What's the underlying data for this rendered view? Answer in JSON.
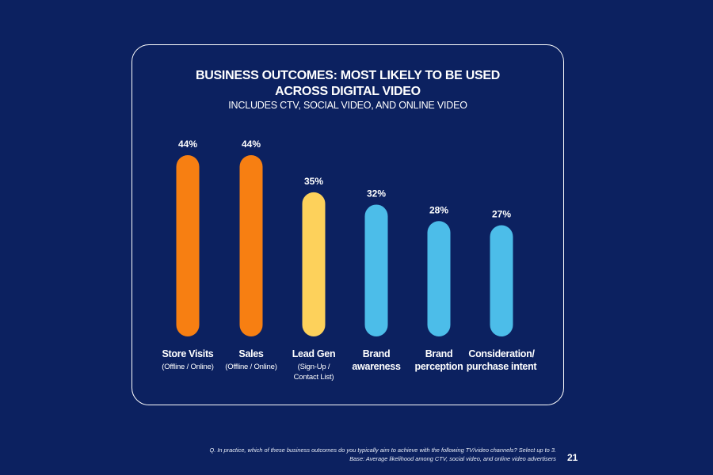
{
  "chart_data": {
    "type": "bar",
    "title": "BUSINESS OUTCOMES: MOST LIKELY TO BE USED ACROSS DIGITAL VIDEO",
    "title_lines": [
      "BUSINESS OUTCOMES: MOST LIKELY TO BE USED",
      "ACROSS DIGITAL VIDEO"
    ],
    "subtitle": "INCLUDES CTV, SOCIAL VIDEO, AND ONLINE VIDEO",
    "categories": [
      {
        "label": [
          "Store Visits"
        ],
        "sublabel": [
          "(Offline / Online)"
        ]
      },
      {
        "label": [
          "Sales"
        ],
        "sublabel": [
          "(Offline / Online)"
        ]
      },
      {
        "label": [
          "Lead Gen"
        ],
        "sublabel": [
          "(Sign-Up /",
          "Contact List)"
        ]
      },
      {
        "label": [
          "Brand",
          "awareness"
        ],
        "sublabel": []
      },
      {
        "label": [
          "Brand",
          "perception"
        ],
        "sublabel": []
      },
      {
        "label": [
          "Consideration/",
          "purchase intent"
        ],
        "sublabel": []
      }
    ],
    "values": [
      44,
      44,
      35,
      32,
      28,
      27
    ],
    "value_labels": [
      "44%",
      "44%",
      "35%",
      "32%",
      "28%",
      "27%"
    ],
    "bar_colors": [
      "#f77f12",
      "#f77f12",
      "#fdd15b",
      "#4cbde9",
      "#4cbde9",
      "#4cbde9"
    ],
    "xlabel": "",
    "ylabel": "",
    "ylim": [
      0,
      44
    ],
    "grid": false,
    "legend": "none"
  },
  "colors": {
    "background": "#0c2160",
    "panel_border": "#ffffff",
    "text": "#ffffff"
  },
  "footnote": {
    "line1": "Q. In practice, which of these business outcomes do you typically aim to achieve with the following TV/video channels? Select up to 3.",
    "line2": "Base: Average likelihood among CTV, social video, and online video advertisers"
  },
  "page_number": "21"
}
